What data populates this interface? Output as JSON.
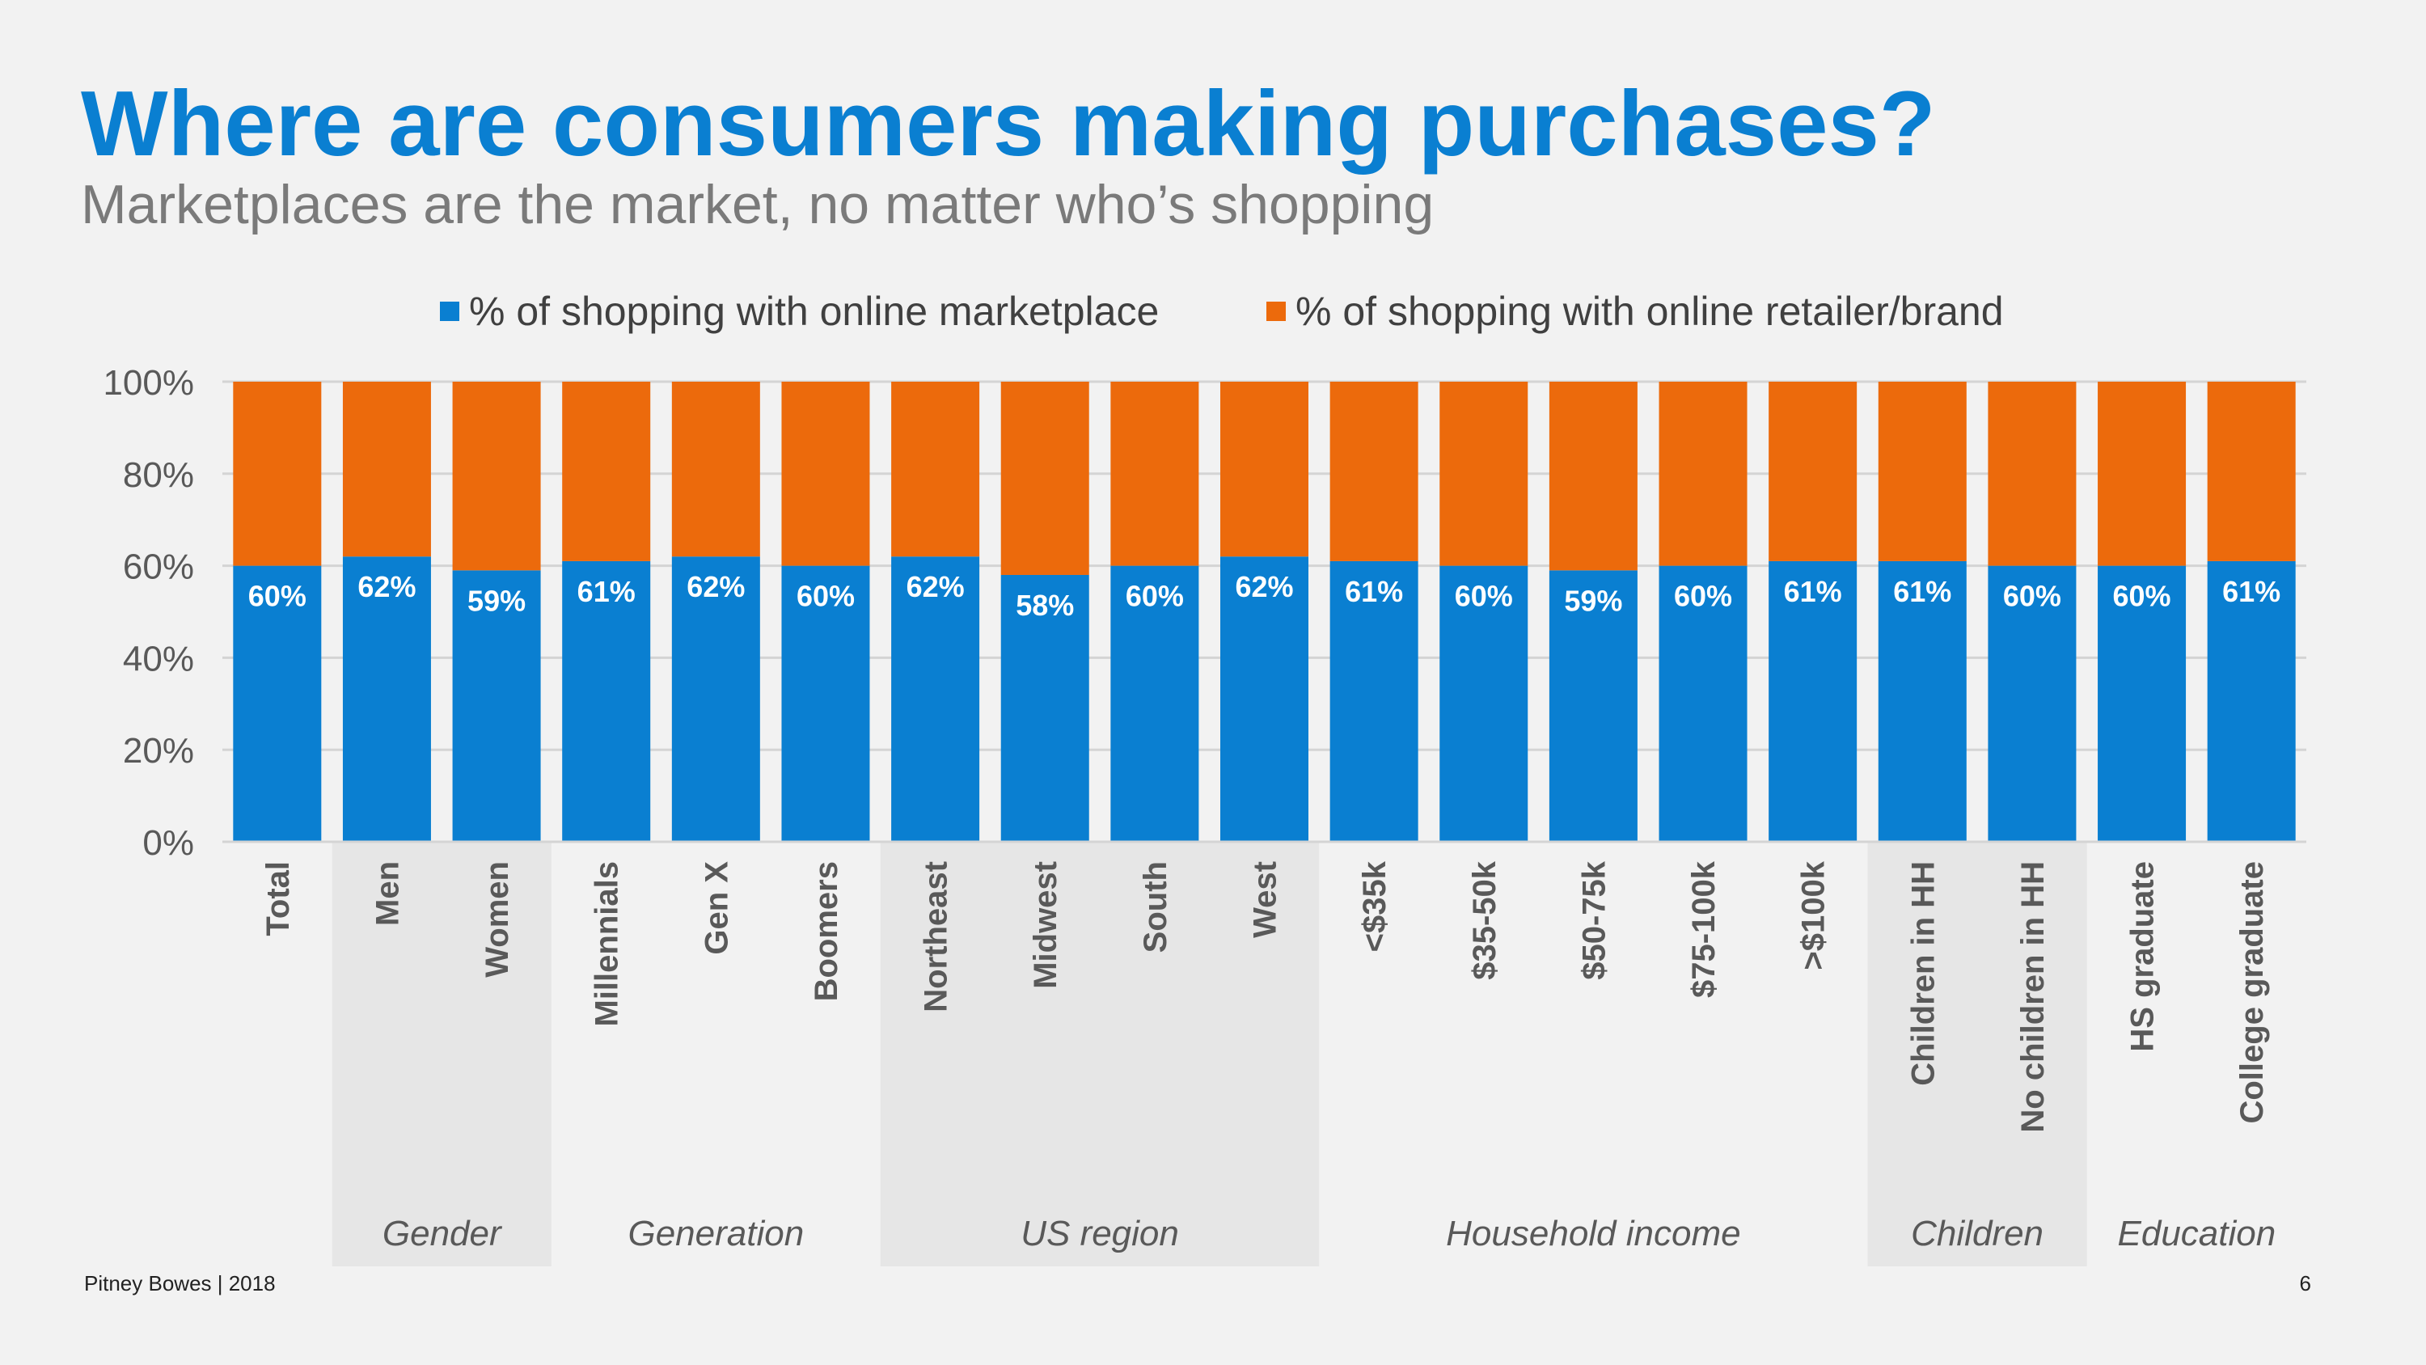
{
  "title": "Where are consumers making purchases?",
  "subtitle": "Marketplaces are the market, no matter who’s shopping",
  "footer": {
    "source": "Pitney Bowes | 2018",
    "page": "6"
  },
  "colors": {
    "marketplace": "#0a7fd1",
    "retailer": "#ec6a0c",
    "group_band_dark": "#e6e6e6",
    "group_band_light": "#f2f2f2"
  },
  "chart_data": {
    "type": "bar",
    "stacked": true,
    "percent_stacked": true,
    "title": "Where are consumers making purchases?",
    "ylim": [
      0,
      100
    ],
    "yticks": [
      "0%",
      "20%",
      "40%",
      "60%",
      "80%",
      "100%"
    ],
    "categories": [
      "Total",
      "Men",
      "Women",
      "Millennials",
      "Gen X",
      "Boomers",
      "Northeast",
      "Midwest",
      "South",
      "West",
      "<$35k",
      "$35-50k",
      "$50-75k",
      "$75-100k",
      ">$100k",
      "Children in HH",
      "No children in HH",
      "HS graduate",
      "College graduate"
    ],
    "series": [
      {
        "name": "% of shopping with online marketplace",
        "values": [
          60,
          62,
          59,
          61,
          62,
          60,
          62,
          58,
          60,
          62,
          61,
          60,
          59,
          60,
          61,
          61,
          60,
          60,
          61
        ],
        "labels": [
          "60%",
          "62%",
          "59%",
          "61%",
          "62%",
          "60%",
          "62%",
          "58%",
          "60%",
          "62%",
          "61%",
          "60%",
          "59%",
          "60%",
          "61%",
          "61%",
          "60%",
          "60%",
          "61%"
        ]
      },
      {
        "name": "% of shopping with online retailer/brand",
        "values": [
          40,
          38,
          41,
          39,
          38,
          40,
          38,
          42,
          40,
          38,
          39,
          40,
          41,
          40,
          39,
          39,
          40,
          40,
          39
        ]
      }
    ],
    "groups": [
      {
        "name": "",
        "start": 0,
        "end": 0,
        "shade": "none"
      },
      {
        "name": "Gender",
        "start": 1,
        "end": 2,
        "shade": "dark"
      },
      {
        "name": "Generation",
        "start": 3,
        "end": 5,
        "shade": "light"
      },
      {
        "name": "US region",
        "start": 6,
        "end": 9,
        "shade": "dark"
      },
      {
        "name": "Household income",
        "start": 10,
        "end": 14,
        "shade": "light"
      },
      {
        "name": "Children",
        "start": 15,
        "end": 16,
        "shade": "dark"
      },
      {
        "name": "Education",
        "start": 17,
        "end": 18,
        "shade": "light"
      }
    ],
    "legend_position": "top"
  }
}
